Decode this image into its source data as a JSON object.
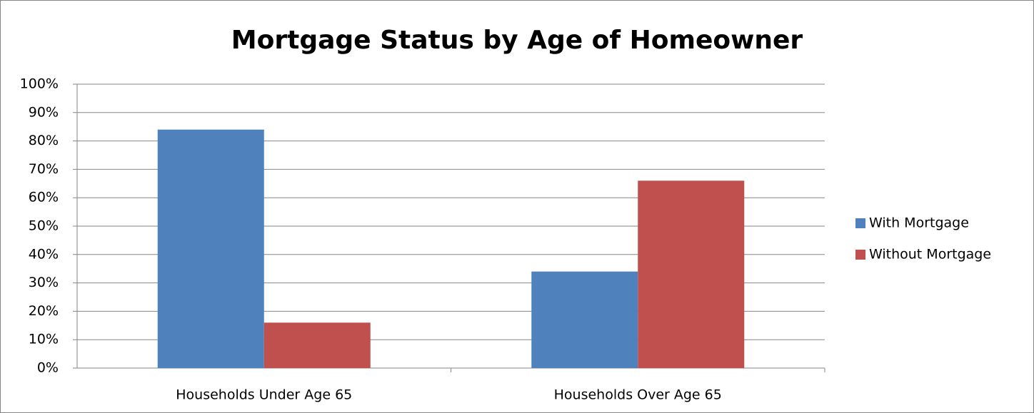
{
  "chart_data": {
    "type": "bar",
    "title": "Mortgage Status by Age of Homeowner",
    "categories": [
      "Households Under Age 65",
      "Households Over Age 65"
    ],
    "series": [
      {
        "name": "With Mortgage",
        "color": "#4f81bd",
        "values": [
          84,
          34
        ]
      },
      {
        "name": "Without Mortgage",
        "color": "#c0504d",
        "values": [
          16,
          66
        ]
      }
    ],
    "ylim": [
      0,
      100
    ],
    "yticks": [
      {
        "value": 0,
        "label": "0%"
      },
      {
        "value": 10,
        "label": "10%"
      },
      {
        "value": 20,
        "label": "20%"
      },
      {
        "value": 30,
        "label": "30%"
      },
      {
        "value": 40,
        "label": "40%"
      },
      {
        "value": 50,
        "label": "50%"
      },
      {
        "value": 60,
        "label": "60%"
      },
      {
        "value": 70,
        "label": "70%"
      },
      {
        "value": 80,
        "label": "80%"
      },
      {
        "value": 90,
        "label": "90%"
      },
      {
        "value": 100,
        "label": "100%"
      }
    ],
    "grid": true,
    "legend": "right"
  }
}
